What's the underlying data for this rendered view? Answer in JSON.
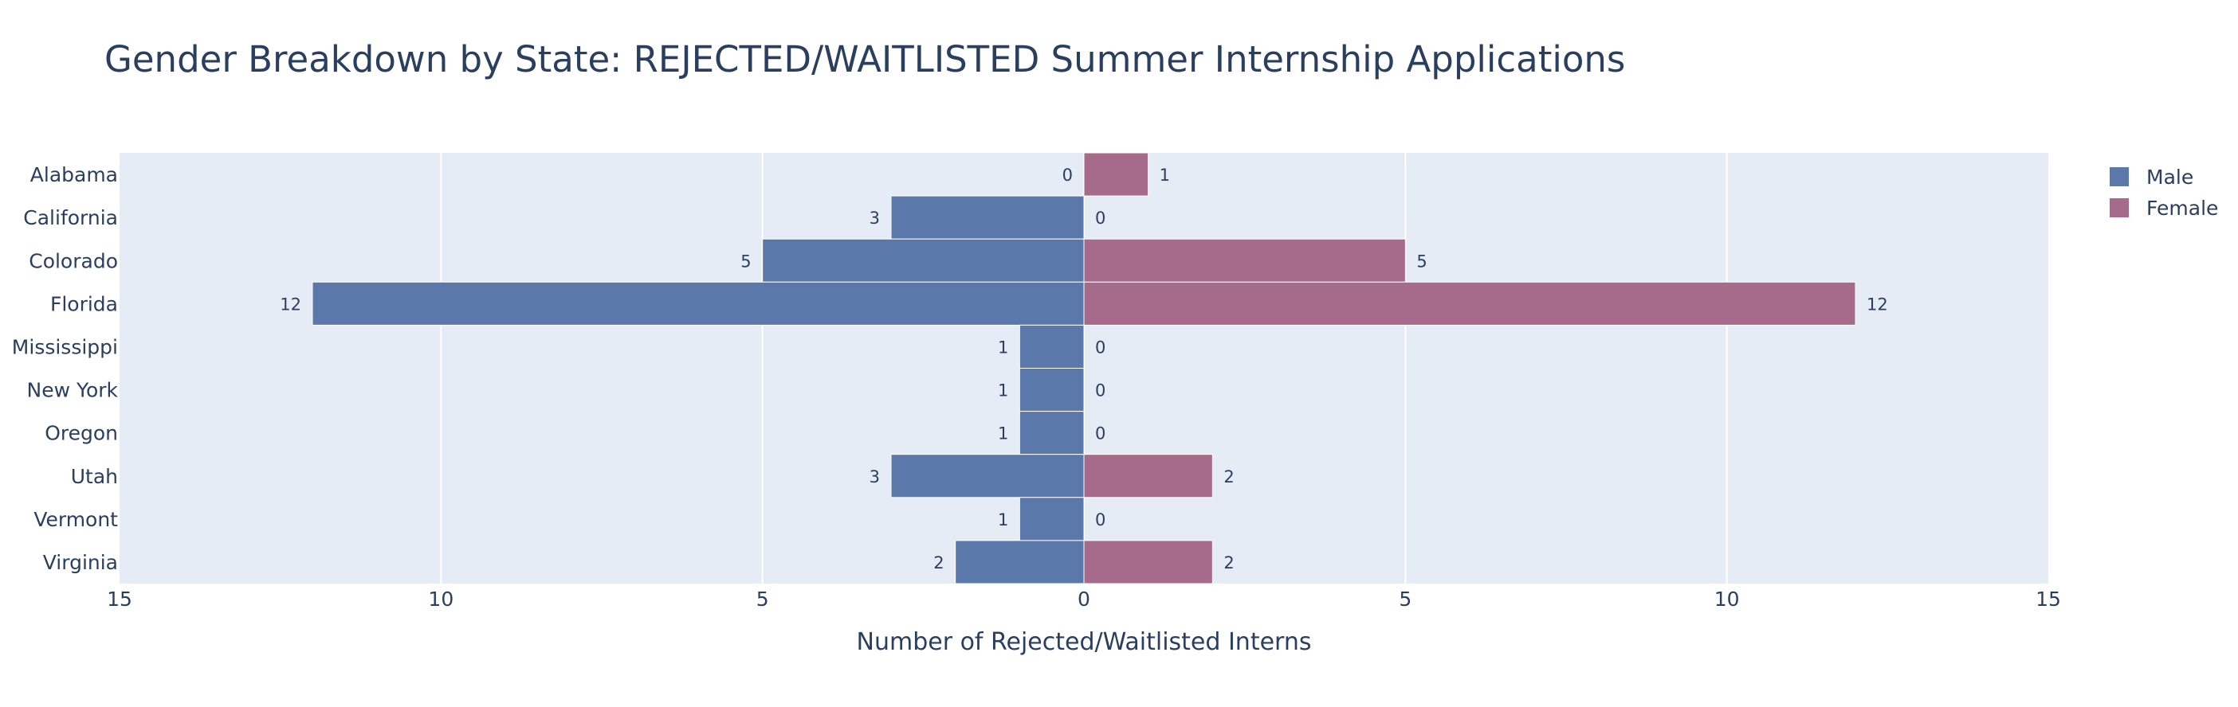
{
  "chart_data": {
    "type": "bar",
    "orientation": "horizontal-diverging",
    "title": "Gender Breakdown by State: REJECTED/WAITLISTED Summer Internship Applications",
    "xlabel": "Number of Rejected/Waitlisted Interns",
    "ylabel": "",
    "categories": [
      "Alabama",
      "California",
      "Colorado",
      "Florida",
      "Mississippi",
      "New York",
      "Oregon",
      "Utah",
      "Vermont",
      "Virginia"
    ],
    "series": [
      {
        "name": "Male",
        "color": "#5b78aa",
        "direction": "left",
        "values": [
          0,
          3,
          5,
          12,
          1,
          1,
          1,
          3,
          1,
          2
        ]
      },
      {
        "name": "Female",
        "color": "#a66a8b",
        "direction": "right",
        "values": [
          1,
          0,
          5,
          12,
          0,
          0,
          0,
          2,
          0,
          2
        ]
      }
    ],
    "xlim": [
      -15,
      15
    ],
    "xticks": [
      -15,
      -10,
      -5,
      0,
      5,
      10,
      15
    ],
    "xtick_labels": [
      "15",
      "10",
      "5",
      "0",
      "5",
      "10",
      "15"
    ],
    "grid": true,
    "legend_position": "right",
    "plot_background": "#e5ecf6"
  }
}
